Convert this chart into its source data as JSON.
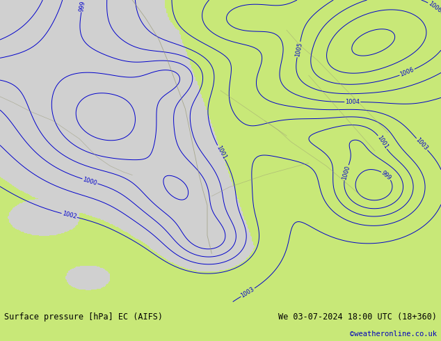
{
  "title_left": "Surface pressure [hPa] EC (AIFS)",
  "title_right": "We 03-07-2024 18:00 UTC (18+360)",
  "copyright": "©weatheronline.co.uk",
  "background_land": "#a8df60",
  "background_sea": "#d0d0d0",
  "contour_color": "#0000cc",
  "border_color": "#999977",
  "footer_bg": "#c8e878",
  "text_color_black": "#000000",
  "text_color_link": "#0000bb",
  "pressure_min": 997,
  "pressure_max": 1010,
  "pressure_step": 1,
  "fig_width": 6.34,
  "fig_height": 4.9,
  "dpi": 100
}
